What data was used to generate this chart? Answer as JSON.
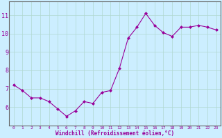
{
  "x": [
    0,
    1,
    2,
    3,
    4,
    5,
    6,
    7,
    8,
    9,
    10,
    11,
    12,
    13,
    14,
    15,
    16,
    17,
    18,
    19,
    20,
    21,
    22,
    23
  ],
  "y": [
    7.2,
    6.9,
    6.5,
    6.5,
    6.3,
    5.9,
    5.5,
    5.8,
    6.3,
    6.2,
    6.8,
    6.9,
    8.1,
    9.75,
    10.35,
    11.1,
    10.45,
    10.05,
    9.85,
    10.35,
    10.35,
    10.45,
    10.35,
    10.2
  ],
  "line_color": "#990099",
  "marker": "D",
  "marker_size": 2,
  "xlabel": "Windchill (Refroidissement éolien,°C)",
  "ylim": [
    5.0,
    11.75
  ],
  "yticks": [
    6,
    7,
    8,
    9,
    10,
    11
  ],
  "xticks": [
    0,
    1,
    2,
    3,
    4,
    5,
    6,
    7,
    8,
    9,
    10,
    11,
    12,
    13,
    14,
    15,
    16,
    17,
    18,
    19,
    20,
    21,
    22,
    23
  ],
  "bg_color": "#cceeff",
  "grid_color": "#aaddcc",
  "border_color": "#888888",
  "tick_label_color": "#990099",
  "axis_label_color": "#990099"
}
